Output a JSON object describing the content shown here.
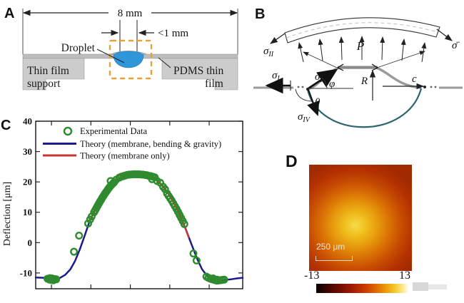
{
  "panel_a": {
    "letter": "A",
    "dim_width": "8 mm",
    "dim_gap": "<1 mm",
    "droplet": "Droplet",
    "support_line1": "Thin film",
    "support_line2": "support",
    "film_line1": "PDMS thin",
    "film_line2": "film",
    "colors": {
      "support": "#cccccc",
      "film": "#bdbdbd",
      "droplet": "#2f97d8",
      "dashed_box": "#e2a23c"
    }
  },
  "panel_b": {
    "letter": "B",
    "sigma": "σ",
    "sub_I": "I",
    "sub_II": "II",
    "sub_IV": "IV",
    "sigma_bar": "σ̄",
    "pressure": "P",
    "phi": "φ",
    "theta": "θ",
    "radius": "R",
    "contact_c": "c",
    "colors": {
      "membrane": "#9a9a9a",
      "droplet_arc": "#2c6470"
    }
  },
  "panel_c": {
    "letter": "C"
  },
  "panel_d": {
    "letter": "D",
    "scale_bar": "250 μm",
    "cbar_min": "-13",
    "cbar_max": "13",
    "heatmap_stops": [
      [
        "#f6dc4a",
        0
      ],
      [
        "#f0c01e",
        15
      ],
      [
        "#e79b0d",
        32
      ],
      [
        "#d96f04",
        50
      ],
      [
        "#c64a02",
        68
      ],
      [
        "#b33101",
        85
      ],
      [
        "#a22a01",
        100
      ]
    ],
    "heatmap_center": "45% 57%",
    "heatmap_size": "68% 62%",
    "colorbar_stops": [
      [
        "#050000",
        0
      ],
      [
        "#3d0400",
        12
      ],
      [
        "#700b00",
        25
      ],
      [
        "#9e1900",
        38
      ],
      [
        "#c23200",
        50
      ],
      [
        "#d95c00",
        62
      ],
      [
        "#ea9306",
        74
      ],
      [
        "#f6c52a",
        85
      ],
      [
        "#fce98e",
        94
      ],
      [
        "#fffdf8",
        100
      ]
    ]
  },
  "chart_data": {
    "type": "line",
    "title": "",
    "xlabel": "",
    "ylabel": "Deflection [μm]",
    "xlim": [
      -2.4,
      2.85
    ],
    "ylim": [
      -15.2,
      40
    ],
    "grid": false,
    "legend_position": "upper left",
    "x_ticks": [
      -2,
      -1,
      0,
      1,
      2
    ],
    "x_tick_labels": [],
    "y_ticks": [
      40,
      30,
      20,
      10,
      0,
      -10
    ],
    "y_tick_labels": [
      "40",
      "30",
      "20",
      "10",
      "0",
      "-10"
    ],
    "legend": [
      {
        "label": "Experimental  Data",
        "marker": "circle",
        "color": "#2e8b2e"
      },
      {
        "label": "Theory (membrane, bending & gravity)",
        "marker": "line",
        "color": "#1b1b8a"
      },
      {
        "label": "Theory (membrane only)",
        "marker": "line",
        "color": "#c43535"
      }
    ],
    "series": [
      {
        "name": "theory_membrane_bending_gravity",
        "type": "line",
        "color": "#1b1b8a",
        "width": 2.5,
        "points": [
          [
            -2.4,
            -11.5
          ],
          [
            -2.2,
            -11.6
          ],
          [
            -2.05,
            -11.9
          ],
          [
            -1.9,
            -12.0
          ],
          [
            -1.78,
            -11.6
          ],
          [
            -1.65,
            -10.6
          ],
          [
            -1.52,
            -8.8
          ],
          [
            -1.4,
            -6.0
          ],
          [
            -1.28,
            -2.2
          ],
          [
            -1.16,
            2.2
          ],
          [
            -1.04,
            6.8
          ],
          [
            -0.92,
            10.2
          ],
          [
            -0.8,
            13.0
          ],
          [
            -0.68,
            15.5
          ],
          [
            -0.56,
            17.7
          ],
          [
            -0.44,
            19.5
          ],
          [
            -0.32,
            20.9
          ],
          [
            -0.2,
            21.8
          ],
          [
            -0.08,
            22.3
          ],
          [
            0.05,
            22.5
          ],
          [
            0.2,
            22.5
          ],
          [
            0.35,
            22.3
          ],
          [
            0.5,
            21.8
          ],
          [
            0.65,
            20.7
          ],
          [
            0.8,
            19.0
          ],
          [
            0.95,
            16.5
          ],
          [
            1.1,
            13.2
          ],
          [
            1.25,
            9.2
          ],
          [
            1.4,
            4.6
          ],
          [
            1.55,
            -0.5
          ],
          [
            1.7,
            -5.5
          ],
          [
            1.82,
            -8.8
          ],
          [
            1.95,
            -11.0
          ],
          [
            2.08,
            -12.0
          ],
          [
            2.2,
            -12.4
          ],
          [
            2.35,
            -12.4
          ],
          [
            2.55,
            -12.1
          ],
          [
            2.7,
            -11.8
          ],
          [
            2.85,
            -11.6
          ]
        ]
      },
      {
        "name": "theory_membrane_only",
        "type": "line",
        "color": "#c43535",
        "width": 2.5,
        "points": [
          [
            -1.04,
            6.8
          ],
          [
            -0.92,
            10.2
          ],
          [
            -0.8,
            13.0
          ],
          [
            -0.68,
            15.5
          ],
          [
            -0.56,
            17.7
          ],
          [
            -0.44,
            19.5
          ],
          [
            -0.32,
            20.9
          ],
          [
            -0.2,
            21.8
          ],
          [
            -0.08,
            22.3
          ],
          [
            0.05,
            22.5
          ],
          [
            0.2,
            22.5
          ],
          [
            0.35,
            22.3
          ],
          [
            0.5,
            21.8
          ],
          [
            0.65,
            20.7
          ],
          [
            0.8,
            19.0
          ],
          [
            0.95,
            16.5
          ],
          [
            1.1,
            13.2
          ],
          [
            1.25,
            9.2
          ],
          [
            1.4,
            4.6
          ],
          [
            1.48,
            1.8
          ]
        ]
      },
      {
        "name": "experimental_data",
        "type": "scatter",
        "color": "#2e8b2e",
        "r": 4.3,
        "width": 2.4,
        "points": [
          [
            -2.1,
            -11.9
          ],
          [
            -2.05,
            -12.2
          ],
          [
            -2.0,
            -12.3
          ],
          [
            -1.96,
            -12.2
          ],
          [
            -1.92,
            -12.0
          ],
          [
            -1.99,
            -11.8
          ],
          [
            -2.04,
            -11.7
          ],
          [
            -1.95,
            -12.4
          ],
          [
            -1.88,
            -12.1
          ],
          [
            -1.43,
            -3.0
          ],
          [
            -1.3,
            2.3
          ],
          [
            -1.07,
            6.3
          ],
          [
            -1.02,
            7.6
          ],
          [
            -0.98,
            8.6
          ],
          [
            -0.92,
            10.0
          ],
          [
            -0.89,
            10.7
          ],
          [
            -0.86,
            11.4
          ],
          [
            -0.83,
            12.1
          ],
          [
            -0.8,
            12.8
          ],
          [
            -0.77,
            13.5
          ],
          [
            -0.74,
            14.1
          ],
          [
            -0.71,
            14.8
          ],
          [
            -0.68,
            15.4
          ],
          [
            -0.65,
            16.0
          ],
          [
            -0.62,
            16.6
          ],
          [
            -0.59,
            17.1
          ],
          [
            -0.56,
            17.7
          ],
          [
            -0.53,
            18.2
          ],
          [
            -0.5,
            18.7
          ],
          [
            -0.47,
            19.1
          ],
          [
            -0.44,
            19.5
          ],
          [
            -0.41,
            19.9
          ],
          [
            -0.5,
            20.3
          ],
          [
            -0.36,
            20.7
          ],
          [
            -0.28,
            21.4
          ],
          [
            -0.23,
            21.7
          ],
          [
            -0.18,
            21.9
          ],
          [
            -0.13,
            22.1
          ],
          [
            -0.08,
            22.3
          ],
          [
            -0.03,
            22.4
          ],
          [
            0.02,
            22.45
          ],
          [
            0.07,
            22.5
          ],
          [
            0.12,
            22.5
          ],
          [
            0.17,
            22.5
          ],
          [
            0.22,
            22.5
          ],
          [
            0.27,
            22.45
          ],
          [
            0.32,
            22.4
          ],
          [
            0.37,
            22.3
          ],
          [
            0.42,
            22.2
          ],
          [
            0.47,
            22.0
          ],
          [
            0.52,
            21.9
          ],
          [
            0.57,
            21.7
          ],
          [
            0.62,
            21.5
          ],
          [
            0.55,
            20.9
          ],
          [
            0.68,
            20.3
          ],
          [
            0.76,
            19.7
          ],
          [
            0.83,
            18.4
          ],
          [
            0.88,
            17.6
          ],
          [
            0.93,
            16.2
          ],
          [
            0.97,
            15.4
          ],
          [
            1.01,
            14.6
          ],
          [
            1.05,
            13.8
          ],
          [
            1.09,
            12.9
          ],
          [
            1.13,
            12.0
          ],
          [
            1.17,
            11.1
          ],
          [
            1.21,
            10.1
          ],
          [
            1.25,
            9.1
          ],
          [
            1.29,
            8.1
          ],
          [
            1.33,
            7.1
          ],
          [
            1.37,
            6.1
          ],
          [
            1.6,
            -3.6
          ],
          [
            1.68,
            -5.9
          ],
          [
            1.93,
            -11.2
          ],
          [
            1.98,
            -11.6
          ],
          [
            2.03,
            -11.9
          ],
          [
            2.08,
            -12.1
          ],
          [
            2.13,
            -12.3
          ],
          [
            2.18,
            -12.5
          ],
          [
            2.23,
            -12.5
          ],
          [
            2.28,
            -12.4
          ],
          [
            2.33,
            -12.3
          ],
          [
            2.38,
            -12.2
          ],
          [
            2.1,
            -11.8
          ],
          [
            2.2,
            -12.2
          ]
        ]
      }
    ]
  }
}
